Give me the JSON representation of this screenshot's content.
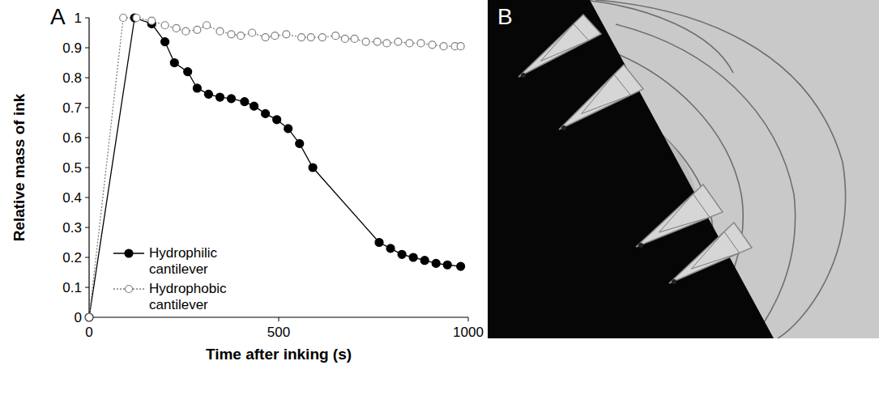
{
  "chart_data": {
    "type": "line",
    "panel_label": "A",
    "x_label": "Time after inking (s)",
    "y_label": "Relative mass of ink",
    "xlim": [
      0,
      1000
    ],
    "xticks": [
      0,
      500,
      1000
    ],
    "ylim": [
      0,
      1
    ],
    "yticks": [
      0,
      0.1,
      0.2,
      0.3,
      0.4,
      0.5,
      0.6,
      0.7,
      0.8,
      0.9,
      1
    ],
    "grid": false,
    "legend": "lower left",
    "series": [
      {
        "name": "Hydrophilic cantilever",
        "color": "#000000",
        "marker": "filled-circle",
        "line_style": "solid",
        "x": [
          0,
          120,
          165,
          200,
          225,
          260,
          285,
          315,
          345,
          375,
          410,
          435,
          465,
          495,
          525,
          555,
          590,
          765,
          795,
          825,
          855,
          885,
          915,
          945,
          980
        ],
        "values": [
          0,
          1.0,
          0.98,
          0.92,
          0.85,
          0.82,
          0.765,
          0.745,
          0.735,
          0.73,
          0.72,
          0.705,
          0.68,
          0.66,
          0.63,
          0.58,
          0.5,
          0.25,
          0.23,
          0.21,
          0.2,
          0.19,
          0.18,
          0.175,
          0.17
        ]
      },
      {
        "name": "Hydrophobic cantilever",
        "color": "#808080",
        "marker": "open-circle",
        "line_style": "dotted",
        "x": [
          0,
          90,
          125,
          165,
          200,
          230,
          255,
          285,
          310,
          345,
          375,
          400,
          430,
          465,
          490,
          520,
          560,
          585,
          615,
          650,
          675,
          700,
          730,
          760,
          785,
          815,
          845,
          875,
          905,
          935,
          965,
          980
        ],
        "values": [
          0,
          1.0,
          1.0,
          0.99,
          0.975,
          0.965,
          0.955,
          0.96,
          0.975,
          0.955,
          0.945,
          0.94,
          0.95,
          0.935,
          0.94,
          0.945,
          0.935,
          0.935,
          0.935,
          0.94,
          0.93,
          0.93,
          0.92,
          0.92,
          0.915,
          0.92,
          0.915,
          0.915,
          0.91,
          0.905,
          0.905,
          0.905
        ]
      }
    ]
  },
  "image_panel": {
    "panel_label": "B"
  }
}
